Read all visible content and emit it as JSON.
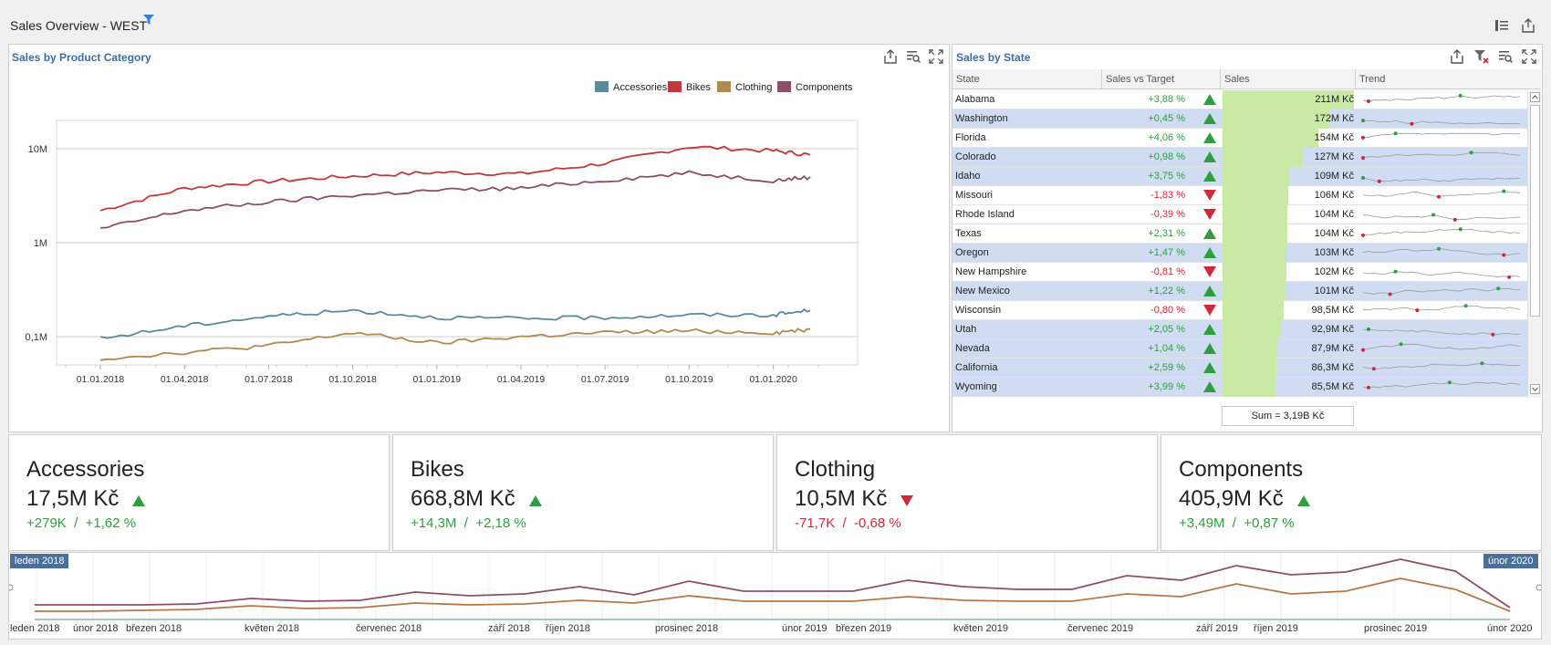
{
  "header": {
    "title": "Sales Overview - WEST"
  },
  "category_chart": {
    "title": "Sales by Product Category",
    "legend": [
      "Accessories",
      "Bikes",
      "Clothing",
      "Components"
    ],
    "colors": {
      "Accessories": "#5b8a9a",
      "Bikes": "#c0393c",
      "Clothing": "#b08a4f",
      "Components": "#8e4d6a"
    },
    "y_ticks": [
      "10M",
      "1M",
      "0,1M"
    ],
    "x_ticks": [
      "01.01.2018",
      "01.04.2018",
      "01.07.2018",
      "01.10.2018",
      "01.01.2019",
      "01.04.2019",
      "01.07.2019",
      "01.10.2019",
      "01.01.2020"
    ]
  },
  "chart_data": {
    "type": "line",
    "title": "Sales by Product Category",
    "y_scale": "log",
    "ylim": [
      "0,05M",
      "20M"
    ],
    "x": [
      "01.01.2018",
      "01.04.2018",
      "01.07.2018",
      "01.10.2018",
      "01.01.2019",
      "01.04.2019",
      "01.07.2019",
      "01.10.2019",
      "01.01.2020",
      "15.02.2020"
    ],
    "series": [
      {
        "name": "Bikes",
        "values": [
          2.2,
          3.8,
          4.5,
          5.1,
          5.6,
          5.4,
          7.0,
          10.5,
          9.5,
          8.6
        ]
      },
      {
        "name": "Components",
        "values": [
          1.4,
          2.2,
          2.7,
          3.2,
          3.6,
          3.8,
          4.6,
          5.5,
          4.6,
          5.0
        ]
      },
      {
        "name": "Accessories",
        "values": [
          0.095,
          0.13,
          0.165,
          0.19,
          0.16,
          0.155,
          0.16,
          0.17,
          0.17,
          0.19
        ]
      },
      {
        "name": "Clothing",
        "values": [
          0.058,
          0.068,
          0.08,
          0.11,
          0.085,
          0.1,
          0.11,
          0.115,
          0.11,
          0.12
        ]
      }
    ],
    "legend": "top-right",
    "grid": true
  },
  "state_grid": {
    "title": "Sales by State",
    "columns": [
      "State",
      "Sales vs Target",
      "Sales",
      "Trend"
    ],
    "rows": [
      {
        "state": "Alabama",
        "pct": "+3,88 %",
        "dir": "up",
        "sales": "211M Kč",
        "value": 211,
        "sel": false
      },
      {
        "state": "Washington",
        "pct": "+0,45 %",
        "dir": "up",
        "sales": "172M Kč",
        "value": 172,
        "sel": true
      },
      {
        "state": "Florida",
        "pct": "+4,06 %",
        "dir": "up",
        "sales": "154M Kč",
        "value": 154,
        "sel": false
      },
      {
        "state": "Colorado",
        "pct": "+0,98 %",
        "dir": "up",
        "sales": "127M Kč",
        "value": 127,
        "sel": true
      },
      {
        "state": "Idaho",
        "pct": "+3,75 %",
        "dir": "up",
        "sales": "109M Kč",
        "value": 109,
        "sel": true
      },
      {
        "state": "Missouri",
        "pct": "-1,83 %",
        "dir": "down",
        "sales": "106M Kč",
        "value": 106,
        "sel": false
      },
      {
        "state": "Rhode Island",
        "pct": "-0,39 %",
        "dir": "down",
        "sales": "104M Kč",
        "value": 104,
        "sel": false
      },
      {
        "state": "Texas",
        "pct": "+2,31 %",
        "dir": "up",
        "sales": "104M Kč",
        "value": 104,
        "sel": false
      },
      {
        "state": "Oregon",
        "pct": "+1,47 %",
        "dir": "up",
        "sales": "103M Kč",
        "value": 103,
        "sel": true
      },
      {
        "state": "New Hampshire",
        "pct": "-0,81 %",
        "dir": "down",
        "sales": "102M Kč",
        "value": 102,
        "sel": false
      },
      {
        "state": "New Mexico",
        "pct": "+1,22 %",
        "dir": "up",
        "sales": "101M Kč",
        "value": 101,
        "sel": true
      },
      {
        "state": "Wisconsin",
        "pct": "-0,80 %",
        "dir": "down",
        "sales": "98,5M Kč",
        "value": 98.5,
        "sel": false
      },
      {
        "state": "Utah",
        "pct": "+2,05 %",
        "dir": "up",
        "sales": "92,9M Kč",
        "value": 92.9,
        "sel": true
      },
      {
        "state": "Nevada",
        "pct": "+1,04 %",
        "dir": "up",
        "sales": "87,9M Kč",
        "value": 87.9,
        "sel": true
      },
      {
        "state": "California",
        "pct": "+2,59 %",
        "dir": "up",
        "sales": "86,3M Kč",
        "value": 86.3,
        "sel": true
      },
      {
        "state": "Wyoming",
        "pct": "+3,99 %",
        "dir": "up",
        "sales": "85,5M Kč",
        "value": 85.5,
        "sel": true
      }
    ],
    "sum": "Sum = 3,19B Kč"
  },
  "kpis": [
    {
      "name": "Accessories",
      "value": "17,5M Kč",
      "delta": "+279K  /  +1,62 %",
      "dir": "up"
    },
    {
      "name": "Bikes",
      "value": "668,8M Kč",
      "delta": "+14,3M  /  +2,18 %",
      "dir": "up"
    },
    {
      "name": "Clothing",
      "value": "10,5M Kč",
      "delta": "-71,7K  /  -0,68 %",
      "dir": "down"
    },
    {
      "name": "Components",
      "value": "405,9M Kč",
      "delta": "+3,49M  /  +0,87 %",
      "dir": "up"
    }
  ],
  "range": {
    "start_tag": "leden 2018",
    "end_tag": "únor 2020",
    "labels": [
      "leden 2018",
      "únor 2018",
      "březen 2018",
      "květen 2018",
      "červenec 2018",
      "září 2018",
      "říjen 2018",
      "prosinec 2018",
      "únor 2019",
      "březen 2019",
      "květen 2019",
      "červenec 2019",
      "září 2019",
      "říjen 2019",
      "prosinec 2019",
      "únor 2020"
    ]
  }
}
